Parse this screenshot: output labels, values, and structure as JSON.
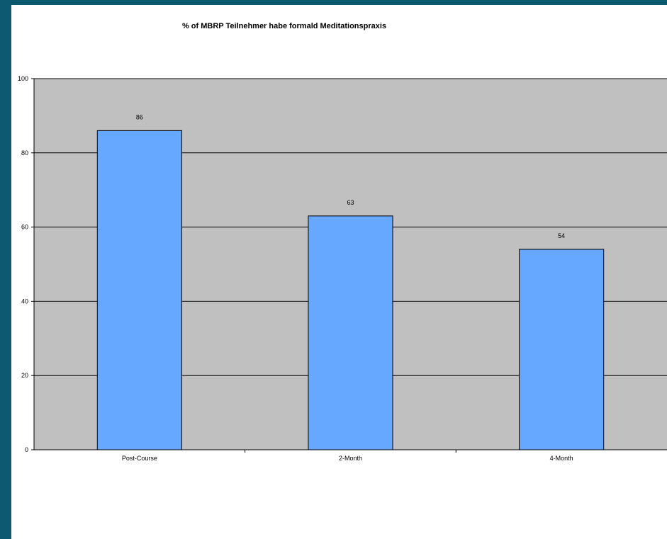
{
  "chart_data": {
    "type": "bar",
    "title": "% of MBRP Teilnehmer habe formald Meditationspraxis",
    "xlabel": "",
    "ylabel": "",
    "categories": [
      "Post-Course",
      "2-Month",
      "4-Month"
    ],
    "values": [
      86,
      63,
      54
    ],
    "ylim": [
      0,
      100
    ],
    "yticks": [
      0,
      20,
      40,
      60,
      80,
      100
    ],
    "grid": true,
    "legend": "none",
    "bar_color": "#66a8ff",
    "plot_background": "#c0c0c0"
  },
  "colors": {
    "page_background": "#0b5a72",
    "frame_background": "#ffffff"
  }
}
